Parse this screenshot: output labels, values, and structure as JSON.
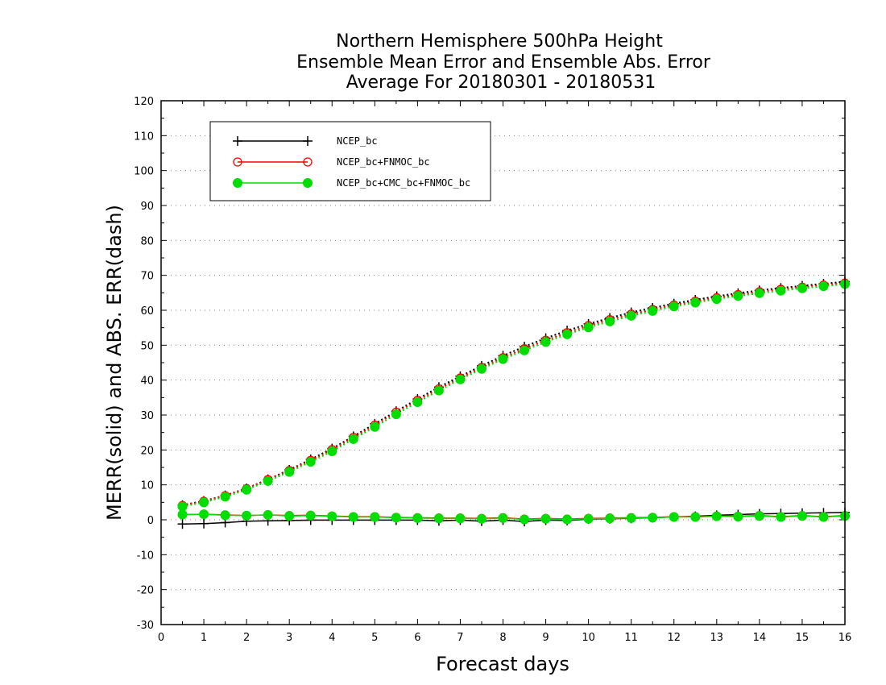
{
  "chart_data": {
    "type": "line",
    "title": [
      "Northern Hemisphere 500hPa Height",
      "Ensemble Mean Error and Ensemble Abs. Error",
      "Average For 20180301 - 20180531"
    ],
    "xlabel": "Forecast days",
    "ylabel": "MERR(solid) and ABS. ERR(dash)",
    "xlim": [
      0,
      16
    ],
    "ylim": [
      -30,
      120
    ],
    "xticks": [
      0,
      1,
      2,
      3,
      4,
      5,
      6,
      7,
      8,
      9,
      10,
      11,
      12,
      13,
      14,
      15,
      16
    ],
    "yticks": [
      -30,
      -20,
      -10,
      0,
      10,
      20,
      30,
      40,
      50,
      60,
      70,
      80,
      90,
      100,
      110,
      120
    ],
    "grid": "dotted horizontal",
    "legend_position": "top-left",
    "x": [
      0.5,
      1,
      1.5,
      2,
      2.5,
      3,
      3.5,
      4,
      4.5,
      5,
      5.5,
      6,
      6.5,
      7,
      7.5,
      8,
      8.5,
      9,
      9.5,
      10,
      10.5,
      11,
      11.5,
      12,
      12.5,
      13,
      13.5,
      14,
      14.5,
      15,
      15.5,
      16
    ],
    "series": [
      {
        "name": "NCEP_bc",
        "color": "#000000",
        "marker": "plus",
        "merr": [
          -1.2,
          -1.1,
          -0.8,
          -0.4,
          -0.3,
          -0.2,
          -0.1,
          -0.1,
          -0.1,
          -0.1,
          -0.1,
          -0.1,
          -0.3,
          -0.1,
          -0.4,
          -0.1,
          -0.5,
          -0.1,
          -0.2,
          0.2,
          0.3,
          0.4,
          0.6,
          0.8,
          1.0,
          1.3,
          1.5,
          1.7,
          1.8,
          1.9,
          2.0,
          2.1
        ],
        "abs_err": [
          4.2,
          5.4,
          7.0,
          9.0,
          11.6,
          14.3,
          17.3,
          20.4,
          23.9,
          27.5,
          31.1,
          34.6,
          38.0,
          41.1,
          44.1,
          47.0,
          49.6,
          52.0,
          54.2,
          56.1,
          57.8,
          59.4,
          60.7,
          61.9,
          63.0,
          64.0,
          64.9,
          65.7,
          66.4,
          67.0,
          67.6,
          68.2
        ]
      },
      {
        "name": "NCEP_bc+FNMOC_bc",
        "color": "#ff0000",
        "marker": "open-circle",
        "merr": [
          1.5,
          1.6,
          1.4,
          1.2,
          1.4,
          1.2,
          1.3,
          1.1,
          0.9,
          0.9,
          0.7,
          0.6,
          0.5,
          0.5,
          0.4,
          0.6,
          0.2,
          0.4,
          0.2,
          0.4,
          0.5,
          0.6,
          0.7,
          0.9,
          0.9,
          1.1,
          1.0,
          1.2,
          0.9,
          1.2,
          0.9,
          1.2
        ],
        "abs_err": [
          4.1,
          5.3,
          6.9,
          8.9,
          11.5,
          14.1,
          17.0,
          20.1,
          23.6,
          27.1,
          30.8,
          34.2,
          37.5,
          40.6,
          43.6,
          46.4,
          49.0,
          51.4,
          53.6,
          55.6,
          57.3,
          58.9,
          60.2,
          61.5,
          62.6,
          63.6,
          64.5,
          65.3,
          66.0,
          66.6,
          67.2,
          67.8
        ]
      },
      {
        "name": "NCEP_bc+CMC_bc+FNMOC_bc",
        "color": "#00dd00",
        "marker": "filled-circle",
        "merr": [
          1.5,
          1.6,
          1.3,
          1.2,
          1.4,
          1.1,
          1.2,
          1.0,
          0.8,
          0.8,
          0.6,
          0.5,
          0.4,
          0.4,
          0.3,
          0.5,
          0.1,
          0.3,
          0.1,
          0.3,
          0.4,
          0.5,
          0.6,
          0.8,
          0.8,
          1.0,
          0.9,
          1.1,
          0.8,
          1.1,
          0.8,
          1.1
        ],
        "abs_err": [
          3.8,
          5.0,
          6.6,
          8.6,
          11.1,
          13.7,
          16.6,
          19.6,
          23.1,
          26.6,
          30.2,
          33.7,
          37.0,
          40.2,
          43.2,
          46.0,
          48.5,
          50.9,
          53.1,
          55.1,
          56.8,
          58.4,
          59.8,
          61.1,
          62.2,
          63.2,
          64.1,
          64.9,
          65.6,
          66.3,
          66.9,
          67.5
        ]
      }
    ]
  }
}
